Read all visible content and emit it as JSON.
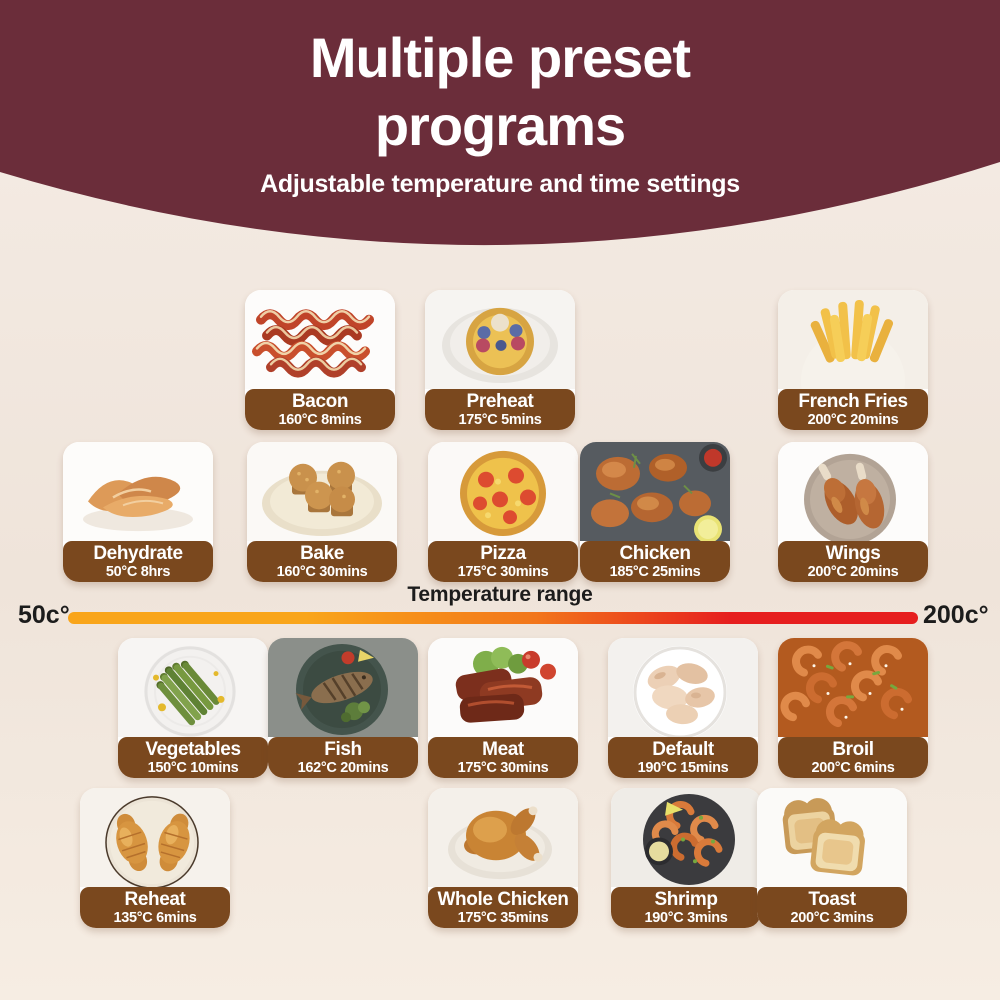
{
  "header": {
    "title_line1": "Multiple preset",
    "title_line2": "programs",
    "subtitle": "Adjustable temperature and time settings",
    "bg_color": "#6B2D3A"
  },
  "temperature_scale": {
    "label": "Temperature range",
    "min_label": "50c°",
    "max_label": "200c°",
    "gradient": [
      "#F9A51A",
      "#F2761B",
      "#E61E1E"
    ]
  },
  "presets": {
    "label_bg_color": "#7A481E",
    "rows": [
      [
        {
          "name": "Bacon",
          "setting": "160°C 8mins",
          "photo": "bacon"
        },
        {
          "name": "Preheat",
          "setting": "175°C 5mins",
          "photo": "preheat"
        },
        {
          "name": "French Fries",
          "setting": "200°C 20mins",
          "photo": "french-fries"
        }
      ],
      [
        {
          "name": "Dehydrate",
          "setting": "50°C 8hrs",
          "photo": "dehydrate"
        },
        {
          "name": "Bake",
          "setting": "160°C 30mins",
          "photo": "bake"
        },
        {
          "name": "Pizza",
          "setting": "175°C 30mins",
          "photo": "pizza"
        },
        {
          "name": "Chicken",
          "setting": "185°C 25mins",
          "photo": "chicken"
        },
        {
          "name": "Wings",
          "setting": "200°C 20mins",
          "photo": "wings"
        }
      ],
      [
        {
          "name": "Vegetables",
          "setting": "150°C 10mins",
          "photo": "vegetables"
        },
        {
          "name": "Fish",
          "setting": "162°C 20mins",
          "photo": "fish"
        },
        {
          "name": "Meat",
          "setting": "175°C 30mins",
          "photo": "meat"
        },
        {
          "name": "Default",
          "setting": "190°C 15mins",
          "photo": "default"
        },
        {
          "name": "Broil",
          "setting": "200°C 6mins",
          "photo": "broil"
        }
      ],
      [
        {
          "name": "Reheat",
          "setting": "135°C 6mins",
          "photo": "reheat"
        },
        {
          "name": "Whole Chicken",
          "setting": "175°C 35mins",
          "photo": "whole-chicken"
        },
        {
          "name": "Shrimp",
          "setting": "190°C 3mins",
          "photo": "shrimp"
        },
        {
          "name": "Toast",
          "setting": "200°C 3mins",
          "photo": "toast"
        }
      ]
    ]
  }
}
